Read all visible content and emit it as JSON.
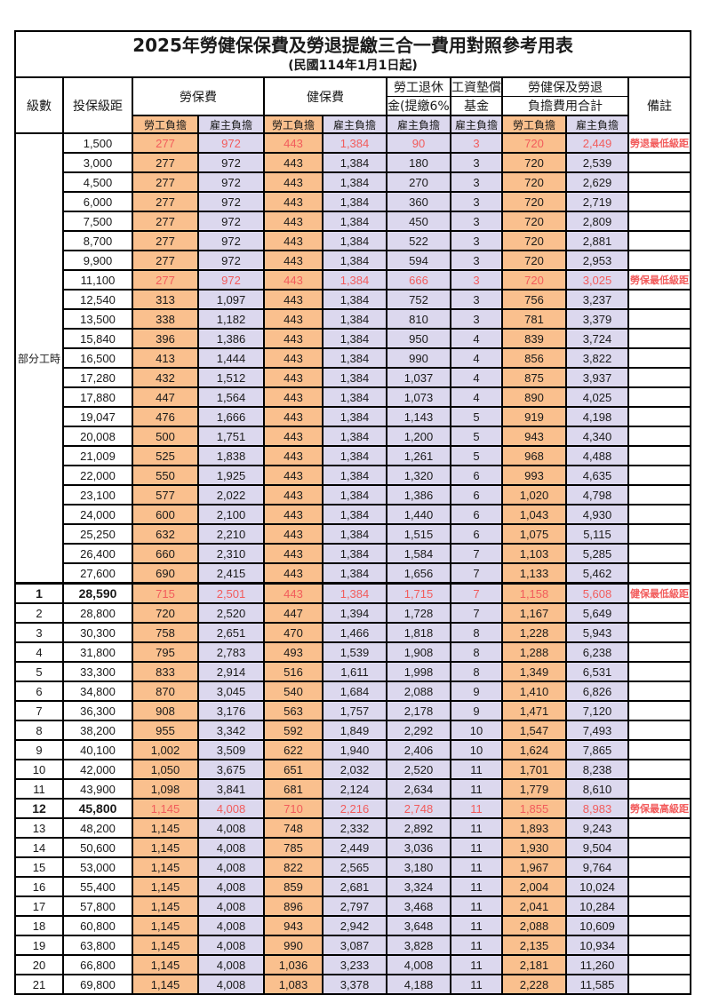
{
  "title": "2025年勞健保保費及勞退提繳三合一費用對照參考用表",
  "subtitle": "(民國114年1月1日起)",
  "colors": {
    "employee_bg": "#FAC08E",
    "employer_bg": "#DCD8EE",
    "highlight_red": "#F25C5C"
  },
  "header": {
    "level": "級數",
    "bracket": "投保級距",
    "labor_ins": "勞保費",
    "health_ins": "健保費",
    "pension_line1": "勞工退休",
    "pension_line2": "金(提繳6%)",
    "wage_fund_line1": "工資墊償",
    "wage_fund_line2": "基金",
    "total_line1": "勞健保及勞退",
    "total_line2": "負擔費用合計",
    "remark": "備註",
    "employee": "勞工負擔",
    "employer": "雇主負擔"
  },
  "part_time_label": "部分工時",
  "rows": [
    {
      "level": "部分工時",
      "level_rowspan": 23,
      "bracket": "1,500",
      "values": [
        "277",
        "972",
        "443",
        "1,384",
        "90",
        "3",
        "720",
        "2,449"
      ],
      "remark": "勞退最低級距",
      "red": true
    },
    {
      "bracket": "3,000",
      "values": [
        "277",
        "972",
        "443",
        "1,384",
        "180",
        "3",
        "720",
        "2,539"
      ],
      "remark": ""
    },
    {
      "bracket": "4,500",
      "values": [
        "277",
        "972",
        "443",
        "1,384",
        "270",
        "3",
        "720",
        "2,629"
      ],
      "remark": ""
    },
    {
      "bracket": "6,000",
      "values": [
        "277",
        "972",
        "443",
        "1,384",
        "360",
        "3",
        "720",
        "2,719"
      ],
      "remark": ""
    },
    {
      "bracket": "7,500",
      "values": [
        "277",
        "972",
        "443",
        "1,384",
        "450",
        "3",
        "720",
        "2,809"
      ],
      "remark": ""
    },
    {
      "bracket": "8,700",
      "values": [
        "277",
        "972",
        "443",
        "1,384",
        "522",
        "3",
        "720",
        "2,881"
      ],
      "remark": ""
    },
    {
      "bracket": "9,900",
      "values": [
        "277",
        "972",
        "443",
        "1,384",
        "594",
        "3",
        "720",
        "2,953"
      ],
      "remark": ""
    },
    {
      "bracket": "11,100",
      "values": [
        "277",
        "972",
        "443",
        "1,384",
        "666",
        "3",
        "720",
        "3,025"
      ],
      "remark": "勞保最低級距",
      "red": true
    },
    {
      "bracket": "12,540",
      "values": [
        "313",
        "1,097",
        "443",
        "1,384",
        "752",
        "3",
        "756",
        "3,237"
      ],
      "remark": ""
    },
    {
      "bracket": "13,500",
      "values": [
        "338",
        "1,182",
        "443",
        "1,384",
        "810",
        "3",
        "781",
        "3,379"
      ],
      "remark": ""
    },
    {
      "bracket": "15,840",
      "values": [
        "396",
        "1,386",
        "443",
        "1,384",
        "950",
        "4",
        "839",
        "3,724"
      ],
      "remark": ""
    },
    {
      "bracket": "16,500",
      "values": [
        "413",
        "1,444",
        "443",
        "1,384",
        "990",
        "4",
        "856",
        "3,822"
      ],
      "remark": ""
    },
    {
      "bracket": "17,280",
      "values": [
        "432",
        "1,512",
        "443",
        "1,384",
        "1,037",
        "4",
        "875",
        "3,937"
      ],
      "remark": ""
    },
    {
      "bracket": "17,880",
      "values": [
        "447",
        "1,564",
        "443",
        "1,384",
        "1,073",
        "4",
        "890",
        "4,025"
      ],
      "remark": ""
    },
    {
      "bracket": "19,047",
      "values": [
        "476",
        "1,666",
        "443",
        "1,384",
        "1,143",
        "5",
        "919",
        "4,198"
      ],
      "remark": ""
    },
    {
      "bracket": "20,008",
      "values": [
        "500",
        "1,751",
        "443",
        "1,384",
        "1,200",
        "5",
        "943",
        "4,340"
      ],
      "remark": ""
    },
    {
      "bracket": "21,009",
      "values": [
        "525",
        "1,838",
        "443",
        "1,384",
        "1,261",
        "5",
        "968",
        "4,488"
      ],
      "remark": ""
    },
    {
      "bracket": "22,000",
      "values": [
        "550",
        "1,925",
        "443",
        "1,384",
        "1,320",
        "6",
        "993",
        "4,635"
      ],
      "remark": ""
    },
    {
      "bracket": "23,100",
      "values": [
        "577",
        "2,022",
        "443",
        "1,384",
        "1,386",
        "6",
        "1,020",
        "4,798"
      ],
      "remark": ""
    },
    {
      "bracket": "24,000",
      "values": [
        "600",
        "2,100",
        "443",
        "1,384",
        "1,440",
        "6",
        "1,043",
        "4,930"
      ],
      "remark": ""
    },
    {
      "bracket": "25,250",
      "values": [
        "632",
        "2,210",
        "443",
        "1,384",
        "1,515",
        "6",
        "1,075",
        "5,115"
      ],
      "remark": ""
    },
    {
      "bracket": "26,400",
      "values": [
        "660",
        "2,310",
        "443",
        "1,384",
        "1,584",
        "7",
        "1,103",
        "5,285"
      ],
      "remark": ""
    },
    {
      "bracket": "27,600",
      "values": [
        "690",
        "2,415",
        "443",
        "1,384",
        "1,656",
        "7",
        "1,133",
        "5,462"
      ],
      "remark": ""
    },
    {
      "level": "1",
      "bracket": "28,590",
      "values": [
        "715",
        "2,501",
        "443",
        "1,384",
        "1,715",
        "7",
        "1,158",
        "5,608"
      ],
      "remark": "健保最低級距",
      "red": true,
      "emph": true,
      "thick_top": true
    },
    {
      "level": "2",
      "bracket": "28,800",
      "values": [
        "720",
        "2,520",
        "447",
        "1,394",
        "1,728",
        "7",
        "1,167",
        "5,649"
      ],
      "remark": ""
    },
    {
      "level": "3",
      "bracket": "30,300",
      "values": [
        "758",
        "2,651",
        "470",
        "1,466",
        "1,818",
        "8",
        "1,228",
        "5,943"
      ],
      "remark": ""
    },
    {
      "level": "4",
      "bracket": "31,800",
      "values": [
        "795",
        "2,783",
        "493",
        "1,539",
        "1,908",
        "8",
        "1,288",
        "6,238"
      ],
      "remark": ""
    },
    {
      "level": "5",
      "bracket": "33,300",
      "values": [
        "833",
        "2,914",
        "516",
        "1,611",
        "1,998",
        "8",
        "1,349",
        "6,531"
      ],
      "remark": ""
    },
    {
      "level": "6",
      "bracket": "34,800",
      "values": [
        "870",
        "3,045",
        "540",
        "1,684",
        "2,088",
        "9",
        "1,410",
        "6,826"
      ],
      "remark": ""
    },
    {
      "level": "7",
      "bracket": "36,300",
      "values": [
        "908",
        "3,176",
        "563",
        "1,757",
        "2,178",
        "9",
        "1,471",
        "7,120"
      ],
      "remark": ""
    },
    {
      "level": "8",
      "bracket": "38,200",
      "values": [
        "955",
        "3,342",
        "592",
        "1,849",
        "2,292",
        "10",
        "1,547",
        "7,493"
      ],
      "remark": ""
    },
    {
      "level": "9",
      "bracket": "40,100",
      "values": [
        "1,002",
        "3,509",
        "622",
        "1,940",
        "2,406",
        "10",
        "1,624",
        "7,865"
      ],
      "remark": ""
    },
    {
      "level": "10",
      "bracket": "42,000",
      "values": [
        "1,050",
        "3,675",
        "651",
        "2,032",
        "2,520",
        "11",
        "1,701",
        "8,238"
      ],
      "remark": ""
    },
    {
      "level": "11",
      "bracket": "43,900",
      "values": [
        "1,098",
        "3,841",
        "681",
        "2,124",
        "2,634",
        "11",
        "1,779",
        "8,610"
      ],
      "remark": ""
    },
    {
      "level": "12",
      "bracket": "45,800",
      "values": [
        "1,145",
        "4,008",
        "710",
        "2,216",
        "2,748",
        "11",
        "1,855",
        "8,983"
      ],
      "remark": "勞保最高級距",
      "red": true,
      "emph": true
    },
    {
      "level": "13",
      "bracket": "48,200",
      "values": [
        "1,145",
        "4,008",
        "748",
        "2,332",
        "2,892",
        "11",
        "1,893",
        "9,243"
      ],
      "remark": ""
    },
    {
      "level": "14",
      "bracket": "50,600",
      "values": [
        "1,145",
        "4,008",
        "785",
        "2,449",
        "3,036",
        "11",
        "1,930",
        "9,504"
      ],
      "remark": ""
    },
    {
      "level": "15",
      "bracket": "53,000",
      "values": [
        "1,145",
        "4,008",
        "822",
        "2,565",
        "3,180",
        "11",
        "1,967",
        "9,764"
      ],
      "remark": ""
    },
    {
      "level": "16",
      "bracket": "55,400",
      "values": [
        "1,145",
        "4,008",
        "859",
        "2,681",
        "3,324",
        "11",
        "2,004",
        "10,024"
      ],
      "remark": ""
    },
    {
      "level": "17",
      "bracket": "57,800",
      "values": [
        "1,145",
        "4,008",
        "896",
        "2,797",
        "3,468",
        "11",
        "2,041",
        "10,284"
      ],
      "remark": ""
    },
    {
      "level": "18",
      "bracket": "60,800",
      "values": [
        "1,145",
        "4,008",
        "943",
        "2,942",
        "3,648",
        "11",
        "2,088",
        "10,609"
      ],
      "remark": ""
    },
    {
      "level": "19",
      "bracket": "63,800",
      "values": [
        "1,145",
        "4,008",
        "990",
        "3,087",
        "3,828",
        "11",
        "2,135",
        "10,934"
      ],
      "remark": ""
    },
    {
      "level": "20",
      "bracket": "66,800",
      "values": [
        "1,145",
        "4,008",
        "1,036",
        "3,233",
        "4,008",
        "11",
        "2,181",
        "11,260"
      ],
      "remark": ""
    },
    {
      "level": "21",
      "bracket": "69,800",
      "values": [
        "1,145",
        "4,008",
        "1,083",
        "3,378",
        "4,188",
        "11",
        "2,228",
        "11,585"
      ],
      "remark": ""
    }
  ]
}
